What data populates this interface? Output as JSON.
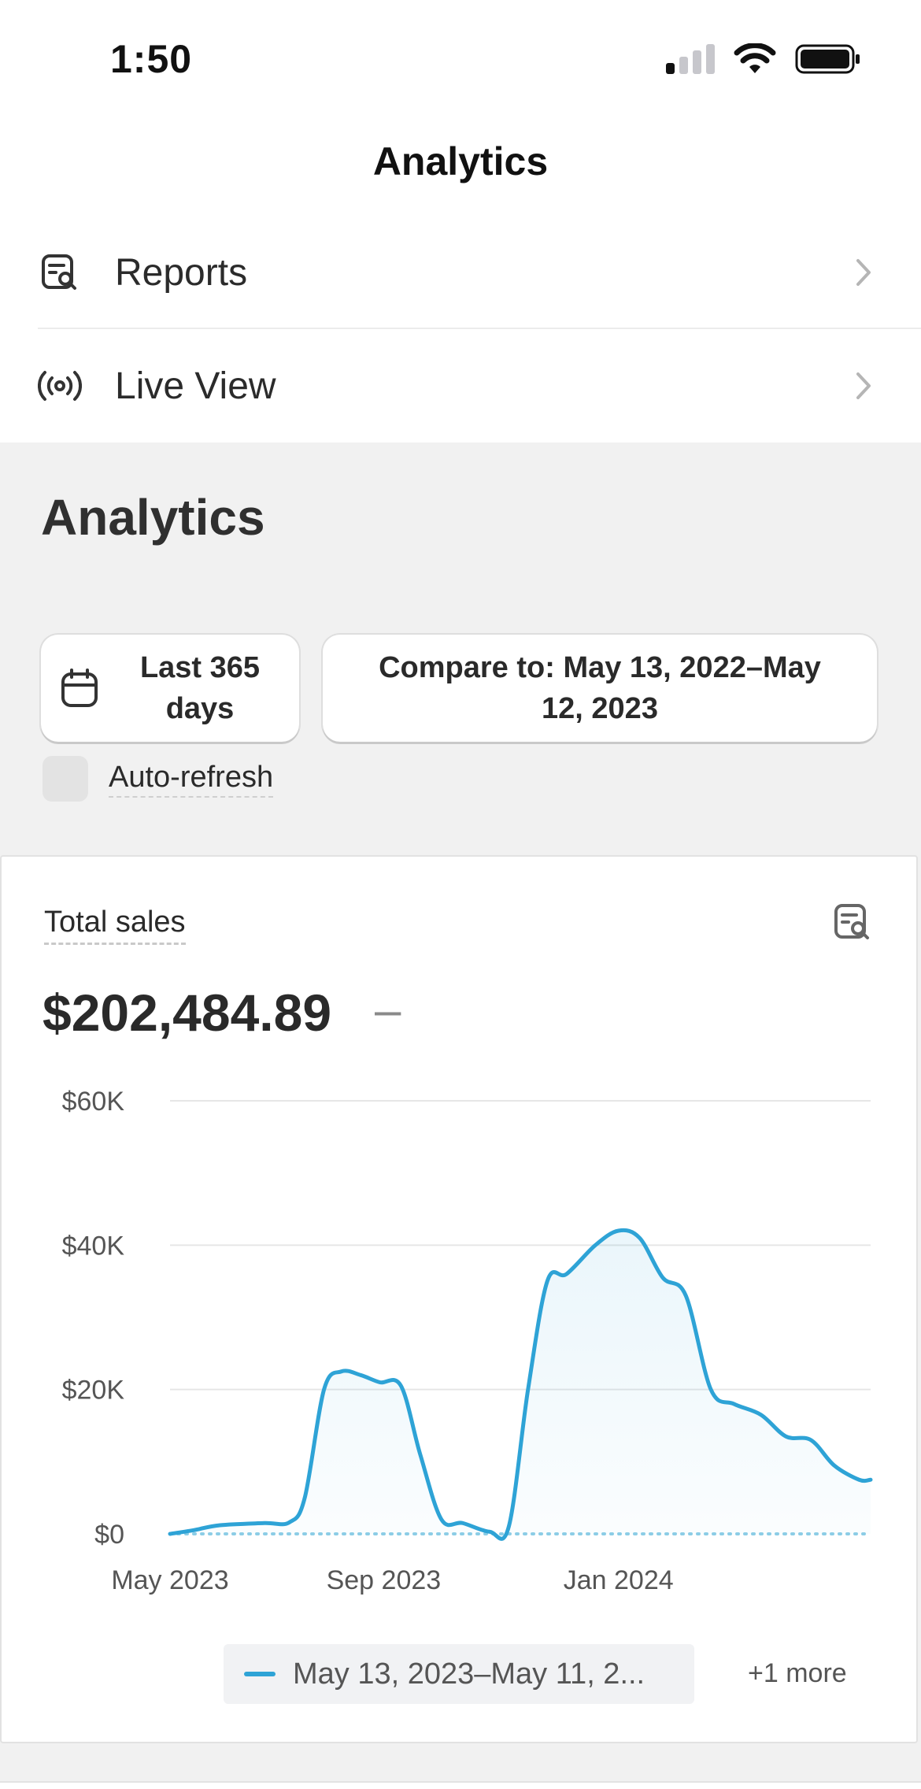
{
  "status_bar": {
    "time": "1:50",
    "icons": [
      "signal-icon",
      "wifi-icon",
      "battery-icon"
    ]
  },
  "nav": {
    "title": "Analytics",
    "rows": [
      {
        "label": "Reports",
        "icon": "report-search-icon"
      },
      {
        "label": "Live View",
        "icon": "broadcast-icon"
      }
    ]
  },
  "analytics": {
    "title": "Analytics",
    "date_range_label": "Last 365 days",
    "compare_label": "Compare to: May 13, 2022–May 12, 2023",
    "auto_refresh_label": "Auto-refresh",
    "auto_refresh_checked": false
  },
  "card": {
    "title": "Total sales",
    "value": "$202,484.89",
    "change": "–",
    "legend_label": "May 13, 2023–May 11, 2...",
    "legend_more": "+1 more"
  },
  "colors": {
    "series": "#2ea3d6",
    "comparison": "#8ccde6",
    "grid": "#e6e6e6"
  },
  "chart_data": {
    "type": "line",
    "y_ticks": [
      "$60K",
      "$40K",
      "$20K",
      "$0"
    ],
    "x_ticks": [
      "May 2023",
      "Sep 2023",
      "Jan 2024"
    ],
    "ylim": [
      0,
      60000
    ],
    "x_range": [
      "2023-05-13",
      "2024-05-11"
    ],
    "series": [
      {
        "name": "May 13, 2023–May 11, 2...",
        "points": [
          [
            "2023-05-13",
            0
          ],
          [
            "2023-05-25",
            500
          ],
          [
            "2023-06-08",
            1200
          ],
          [
            "2023-07-01",
            1500
          ],
          [
            "2023-07-14",
            1600
          ],
          [
            "2023-07-22",
            5000
          ],
          [
            "2023-08-01",
            20000
          ],
          [
            "2023-08-10",
            22500
          ],
          [
            "2023-08-20",
            22000
          ],
          [
            "2023-08-30",
            21000
          ],
          [
            "2023-09-10",
            20500
          ],
          [
            "2023-09-20",
            11000
          ],
          [
            "2023-10-01",
            2000
          ],
          [
            "2023-10-12",
            1500
          ],
          [
            "2023-10-26",
            300
          ],
          [
            "2023-11-05",
            1000
          ],
          [
            "2023-11-15",
            20000
          ],
          [
            "2023-11-25",
            35000
          ],
          [
            "2023-12-05",
            36000
          ],
          [
            "2023-12-20",
            40000
          ],
          [
            "2024-01-01",
            42000
          ],
          [
            "2024-01-12",
            41000
          ],
          [
            "2024-01-24",
            35500
          ],
          [
            "2024-02-05",
            33000
          ],
          [
            "2024-02-18",
            20000
          ],
          [
            "2024-03-01",
            18000
          ],
          [
            "2024-03-15",
            16500
          ],
          [
            "2024-03-28",
            13500
          ],
          [
            "2024-04-10",
            13000
          ],
          [
            "2024-04-22",
            9500
          ],
          [
            "2024-05-05",
            7500
          ],
          [
            "2024-05-11",
            7500
          ]
        ]
      },
      {
        "name": "comparison",
        "style": "dotted",
        "points": [
          [
            "2023-05-13",
            0
          ],
          [
            "2024-05-11",
            0
          ]
        ]
      }
    ],
    "grid": true
  }
}
